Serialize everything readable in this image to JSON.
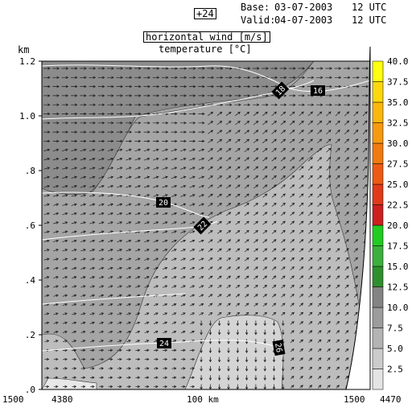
{
  "header": {
    "forecast_step": "+24",
    "base_label": "Base:",
    "base_value": "03-07-2003",
    "base_hour": "12 UTC",
    "valid_label": "Valid:",
    "valid_value": "04-07-2003",
    "valid_hour": "12 UTC"
  },
  "chart_data": {
    "type": "heatmap",
    "title": "horizontal wind [m/s]",
    "subtitle": "temperature [°C]",
    "ylabel": "km",
    "xlabel": "100 km",
    "ylim": [
      0,
      1.2
    ],
    "y_ticks": [
      ".0",
      ".2",
      ".4",
      ".6",
      ".8",
      "1.0",
      "1.2"
    ],
    "y_tick_values": [
      0,
      0.2,
      0.4,
      0.6,
      0.8,
      1.0,
      1.2
    ],
    "x_axis_labels": {
      "left": "1500",
      "left_inner": "4380",
      "center": "100 km",
      "right": "1500",
      "right_outer": "4470"
    },
    "grid": false,
    "colorbar": {
      "levels": [
        2.5,
        5.0,
        7.5,
        10.0,
        12.5,
        15.0,
        17.5,
        20.0,
        22.5,
        25.0,
        27.5,
        30.0,
        32.5,
        35.0,
        37.5,
        40.0
      ],
      "labels": [
        "2.5",
        "5.0",
        "7.5",
        "10.0",
        "12.5",
        "15.0",
        "17.5",
        "20.0",
        "22.5",
        "25.0",
        "27.5",
        "30.0",
        "32.5",
        "35.0",
        "37.5",
        "40.0"
      ],
      "colors": [
        "#e4e4e4",
        "#cccccc",
        "#b4b4b4",
        "#9c9c9c",
        "#848484",
        "#2f8f2f",
        "#3cb03c",
        "#22cc22",
        "#cc2020",
        "#e03a1a",
        "#ee5a14",
        "#f27a10",
        "#f79a10",
        "#fab80e",
        "#fdd80e",
        "#ffff10"
      ]
    },
    "wind_regions": [
      {
        "level": 10.0,
        "color": "#8c8c8c"
      },
      {
        "level": 7.5,
        "color": "#a5a5a5"
      },
      {
        "level": 5.0,
        "color": "#bdbdbd"
      },
      {
        "level": 2.5,
        "color": "#d4d4d4"
      },
      {
        "level": 0,
        "color": "#e8e8e8"
      }
    ],
    "isotherm_labels": [
      "16",
      "18",
      "20",
      "22",
      "24",
      "26"
    ],
    "isotherm_label_text": {
      "16": "16",
      "18": "18",
      "20": "20",
      "22": "22",
      "24": "24",
      "26": "26"
    }
  },
  "colors": {
    "isotherm": "#ffffff",
    "arrow": "#1a1a1a",
    "terrain": "#ffffff"
  }
}
